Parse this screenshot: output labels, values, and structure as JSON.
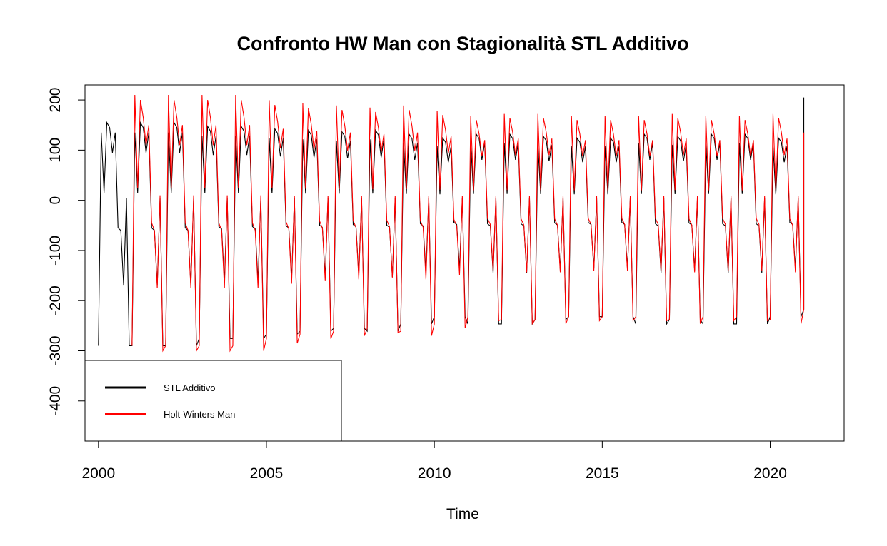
{
  "chart_data": {
    "type": "line",
    "title": "Confronto HW Man con Stagionalità STL Additivo",
    "xlabel": "Time",
    "ylabel": "",
    "xlim": [
      1999.6,
      2022.2
    ],
    "ylim": [
      -480,
      230
    ],
    "x_ticks": [
      2000,
      2005,
      2010,
      2015,
      2020
    ],
    "y_ticks": [
      -400,
      -300,
      -200,
      -100,
      0,
      100,
      200
    ],
    "frequency": 12,
    "legend": {
      "position": "bottom-left",
      "entries": [
        "STL Additivo",
        "Holt-Winters Man"
      ]
    },
    "series": [
      {
        "name": "STL Additivo",
        "color": "#000000",
        "start": 2000.0,
        "pattern": [
          -290,
          135,
          15,
          155,
          145,
          95,
          135,
          -55,
          -60,
          -170,
          5,
          -290
        ],
        "year_scale": [
          1.0,
          1.0,
          1.0,
          0.95,
          0.95,
          0.92,
          0.9,
          0.88,
          0.9,
          0.85,
          0.8,
          0.85,
          0.85,
          0.82,
          0.8,
          0.8,
          0.85,
          0.82,
          0.85,
          0.85,
          0.8,
          0.75
        ],
        "year_end": 2021.0,
        "end_value": 205
      },
      {
        "name": "Holt-Winters Man",
        "color": "#ff0000",
        "start": 2001.0,
        "pattern": [
          -290,
          210,
          25,
          200,
          165,
          110,
          150,
          -45,
          -60,
          -175,
          10,
          -300
        ],
        "year_scale": [
          1.0,
          1.0,
          1.0,
          1.0,
          0.95,
          0.92,
          0.9,
          0.88,
          0.9,
          0.85,
          0.8,
          0.82,
          0.82,
          0.8,
          0.8,
          0.8,
          0.82,
          0.8,
          0.8,
          0.82,
          0.75
        ],
        "year_end": 2021.0,
        "end_value": 135
      }
    ]
  }
}
